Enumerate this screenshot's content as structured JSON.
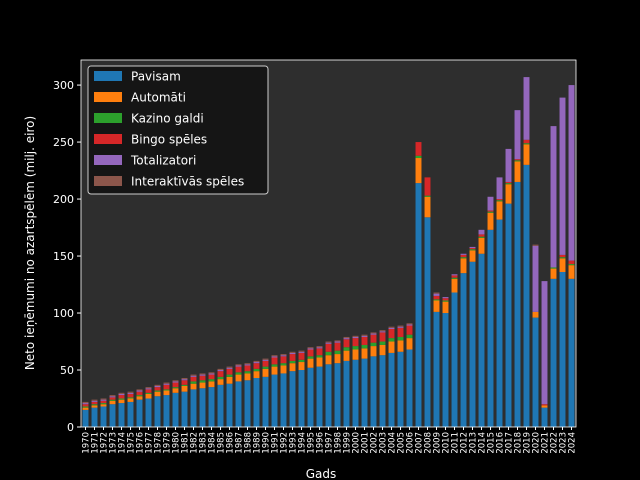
{
  "chart_data": {
    "type": "stacked_bar",
    "x_label": "Gads",
    "y_label": "Neto ieņēmumi no azartspēlēm (milj. eiro)",
    "categories": [
      "1970",
      "1971",
      "1972",
      "1973",
      "1974",
      "1975",
      "1976",
      "1977",
      "1978",
      "1979",
      "1980",
      "1981",
      "1982",
      "1983",
      "1984",
      "1985",
      "1986",
      "1987",
      "1988",
      "1989",
      "1990",
      "1991",
      "1992",
      "1993",
      "1994",
      "1995",
      "1996",
      "1997",
      "1998",
      "1999",
      "2000",
      "2001",
      "2002",
      "2003",
      "2004",
      "2005",
      "2006",
      "2007",
      "2008",
      "2009",
      "2010",
      "2011",
      "2012",
      "2013",
      "2014",
      "2015",
      "2016",
      "2017",
      "2018",
      "2019",
      "2020",
      "2021",
      "2022",
      "2023",
      "2024"
    ],
    "series": [
      {
        "name": "Pavisam",
        "color": "#1f77b4",
        "values": [
          15,
          17,
          18,
          20,
          21,
          22,
          24,
          25,
          27,
          28,
          30,
          31,
          33,
          34,
          35,
          37,
          38,
          40,
          41,
          43,
          44,
          46,
          47,
          49,
          50,
          52,
          53,
          55,
          56,
          58,
          59,
          60,
          62,
          63,
          65,
          66,
          68,
          214,
          184,
          101,
          100,
          118,
          135,
          145,
          152,
          173,
          182,
          196,
          215,
          230,
          96,
          17,
          130,
          136,
          130
        ]
      },
      {
        "name": "Automāti",
        "color": "#ff7f0e",
        "values": [
          2,
          2,
          2,
          3,
          3,
          3,
          3,
          4,
          4,
          4,
          4,
          5,
          5,
          5,
          5,
          5,
          6,
          6,
          6,
          6,
          7,
          7,
          7,
          7,
          7,
          8,
          8,
          8,
          8,
          9,
          9,
          9,
          9,
          9,
          10,
          10,
          10,
          22,
          18,
          10,
          10,
          12,
          13,
          10,
          14,
          15,
          16,
          17,
          18,
          18,
          5,
          2,
          9,
          12,
          12
        ]
      },
      {
        "name": "Kazino galdi",
        "color": "#2ca02c",
        "values": [
          1,
          1,
          1,
          1,
          1,
          1,
          1,
          1,
          1,
          1,
          1,
          1,
          2,
          2,
          2,
          2,
          2,
          2,
          2,
          2,
          2,
          2,
          2,
          2,
          2,
          2,
          2,
          3,
          3,
          3,
          3,
          3,
          3,
          3,
          3,
          3,
          3,
          2,
          1,
          1,
          1,
          1,
          1,
          1,
          1,
          1,
          1,
          1,
          1,
          1,
          0,
          0,
          1,
          1,
          1
        ]
      },
      {
        "name": "Bingo spēles",
        "color": "#d62728",
        "values": [
          2,
          2,
          2,
          2,
          3,
          3,
          3,
          3,
          3,
          4,
          4,
          4,
          4,
          4,
          4,
          5,
          5,
          5,
          5,
          5,
          5,
          6,
          6,
          6,
          6,
          6,
          6,
          7,
          7,
          7,
          7,
          7,
          7,
          8,
          8,
          8,
          8,
          12,
          16,
          3,
          2,
          2,
          2,
          1,
          2,
          1,
          1,
          1,
          1,
          3,
          0,
          1,
          0,
          2,
          3
        ]
      },
      {
        "name": "Totalizatori",
        "color": "#9467bd",
        "values": [
          1,
          1,
          1,
          1,
          1,
          1,
          1,
          1,
          1,
          1,
          1,
          1,
          1,
          1,
          1,
          1,
          1,
          1,
          1,
          1,
          1,
          1,
          1,
          1,
          1,
          1,
          1,
          1,
          1,
          1,
          1,
          1,
          1,
          1,
          1,
          1,
          1,
          0,
          0,
          2,
          1,
          1,
          1,
          1,
          4,
          12,
          19,
          29,
          43,
          55,
          58,
          108,
          124,
          138,
          154
        ]
      },
      {
        "name": "Interaktīvās spēles",
        "color": "#8c564b",
        "values": [
          1,
          1,
          1,
          1,
          1,
          1,
          1,
          1,
          1,
          1,
          1,
          1,
          1,
          1,
          1,
          1,
          1,
          1,
          1,
          1,
          1,
          1,
          1,
          1,
          1,
          1,
          1,
          1,
          1,
          1,
          1,
          1,
          1,
          1,
          1,
          1,
          1,
          0,
          0,
          1,
          0,
          0,
          0,
          0,
          0,
          0,
          0,
          0,
          0,
          0,
          1,
          0,
          0,
          0,
          0
        ]
      }
    ],
    "ylim": [
      0,
      322
    ],
    "yticks": [
      0,
      50,
      100,
      150,
      200,
      250,
      300
    ],
    "legend": "upper left"
  }
}
